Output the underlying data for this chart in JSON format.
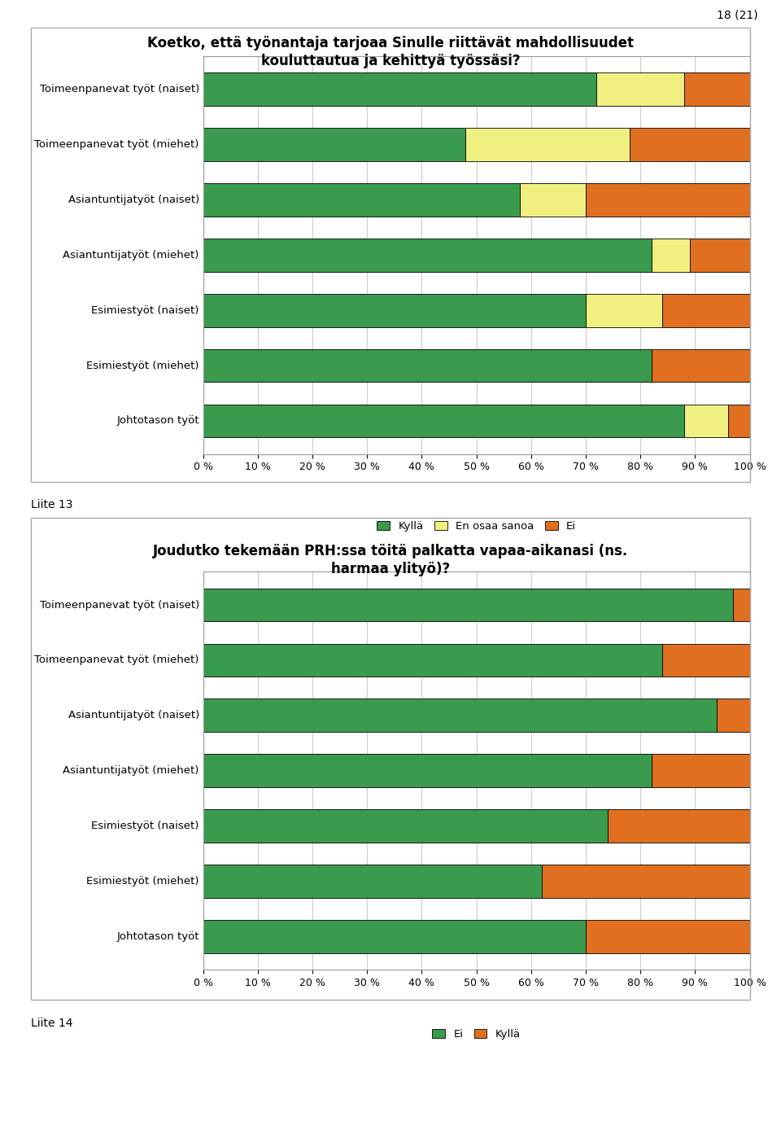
{
  "chart1": {
    "title": "Koetko, että työnantaja tarjoaa Sinulle riittävät mahdollisuudet\nkouluttautua ja kehittyä työssäsi?",
    "categories": [
      "Johtotason työt",
      "Esimiestyöt (miehet)",
      "Esimiestyöt (naiset)",
      "Asiantuntijatyöt (miehet)",
      "Asiantuntijatyöt (naiset)",
      "Toimeenpanevat työt (miehet)",
      "Toimeenpanevat työt (naiset)"
    ],
    "kylla": [
      88,
      82,
      70,
      82,
      58,
      48,
      72
    ],
    "en_osaa_sanoa": [
      8,
      0,
      14,
      7,
      12,
      30,
      16
    ],
    "ei": [
      4,
      18,
      16,
      11,
      30,
      22,
      12
    ],
    "colors": {
      "kylla": "#3a9a4d",
      "en_osaa_sanoa": "#f0f080",
      "ei": "#e07020"
    },
    "legend_labels": [
      "Kyllä",
      "En osaa sanoa",
      "Ei"
    ],
    "xlabel_ticks": [
      0,
      10,
      20,
      30,
      40,
      50,
      60,
      70,
      80,
      90,
      100
    ]
  },
  "chart2": {
    "title": "Joudutko tekemään PRH:ssa töitä palkatta vapaa-aikanasi (ns.\nharmaa ylityö)?",
    "categories": [
      "Johtotason työt",
      "Esimiestyöt (miehet)",
      "Esimiestyöt (naiset)",
      "Asiantuntijatyöt (miehet)",
      "Asiantuntijatyöt (naiset)",
      "Toimeenpanevat työt (miehet)",
      "Toimeenpanevat työt (naiset)"
    ],
    "ei": [
      70,
      62,
      74,
      82,
      94,
      84,
      97
    ],
    "kylla": [
      30,
      38,
      26,
      18,
      6,
      16,
      3
    ],
    "colors": {
      "ei": "#3a9a4d",
      "kylla": "#e07020"
    },
    "legend_labels": [
      "Ei",
      "Kyllä"
    ],
    "xlabel_ticks": [
      0,
      10,
      20,
      30,
      40,
      50,
      60,
      70,
      80,
      90,
      100
    ]
  },
  "page_number": "18 (21)",
  "liite13": "Liite 13",
  "liite14": "Liite 14",
  "bg_color": "#ffffff",
  "bar_edge_color": "#000000",
  "grid_color": "#cccccc",
  "title_fontsize": 12,
  "label_fontsize": 9.5,
  "tick_fontsize": 9,
  "legend_fontsize": 9.5
}
